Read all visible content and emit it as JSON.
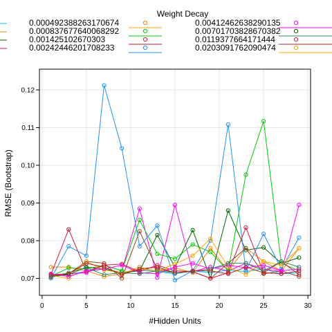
{
  "chart_data": {
    "type": "line",
    "legend_title": "Weight Decay",
    "xlabel": "#Hidden Units",
    "ylabel": "RMSE (Bootstrap)",
    "xlim": [
      -0.3,
      30.3
    ],
    "ylim": [
      0.0655,
      0.1255
    ],
    "xticks": [
      0,
      5,
      10,
      15,
      20,
      25,
      30
    ],
    "yticks": [
      0.07,
      0.08,
      0.09,
      0.1,
      0.11,
      0.12
    ],
    "ytick_labels": [
      "0.07",
      "0.08",
      "0.09",
      "0.10",
      "0.11",
      "0.12"
    ],
    "grid": true,
    "legend_position": "top",
    "x": [
      1,
      3,
      5,
      7,
      9,
      11,
      13,
      15,
      17,
      19,
      21,
      23,
      25,
      27,
      29
    ],
    "series": [
      {
        "name": "",
        "color": "#00bfff",
        "values": [
          0.0705,
          0.0712,
          0.0718,
          0.0725,
          0.0715,
          0.0722,
          0.0718,
          0.0712,
          0.072,
          0.0715,
          0.0722,
          0.0718,
          0.0725,
          0.0712,
          0.0715
        ]
      },
      {
        "name": "0.000492388263170674",
        "color": "#ff7f00",
        "values": [
          0.073,
          0.073,
          0.072,
          0.0705,
          0.0712,
          0.073,
          0.0718,
          0.0728,
          0.0715,
          0.078,
          0.072,
          0.078,
          0.0745,
          0.072,
          0.078
        ]
      },
      {
        "name": "0.00412462638290135",
        "color": "#ff00ff",
        "values": [
          0.071,
          0.0712,
          0.0715,
          0.0735,
          0.072,
          0.0885,
          0.0702,
          0.0895,
          0.0718,
          0.073,
          0.072,
          0.074,
          0.0725,
          0.0718,
          0.0895
        ]
      },
      {
        "name": "0.000837677640068292",
        "color": "#00cc00",
        "values": [
          0.0705,
          0.0728,
          0.0725,
          0.0735,
          0.072,
          0.0855,
          0.0765,
          0.0752,
          0.079,
          0.077,
          0.072,
          0.0975,
          0.1117,
          0.074,
          0.072
        ]
      },
      {
        "name": "0.00701703828670382",
        "color": "#006400",
        "values": [
          0.0705,
          0.071,
          0.073,
          0.0725,
          0.0715,
          0.072,
          0.0815,
          0.073,
          0.0828,
          0.07,
          0.088,
          0.0775,
          0.0782,
          0.074,
          0.0755
        ]
      },
      {
        "name": "0.001425102670303",
        "color": "#8b4513",
        "values": [
          0.0703,
          0.0712,
          0.0745,
          0.074,
          0.07,
          0.0825,
          0.0725,
          0.0715,
          0.0718,
          0.07,
          0.074,
          0.078,
          0.0712,
          0.072,
          0.0705
        ]
      },
      {
        "name": "0.0119377664171444",
        "color": "#dc143c",
        "values": [
          0.071,
          0.083,
          0.0718,
          0.0735,
          0.0738,
          0.0718,
          0.0735,
          0.072,
          0.0718,
          0.07,
          0.0715,
          0.0835,
          0.0715,
          0.0745,
          0.071
        ]
      },
      {
        "name": "0.00242446201708233",
        "color": "#1e90ff",
        "values": [
          0.07,
          0.0785,
          0.076,
          0.1212,
          0.1045,
          0.0785,
          0.084,
          0.0695,
          0.072,
          0.08,
          0.1108,
          0.072,
          0.0818,
          0.0725,
          0.0808
        ]
      },
      {
        "name": "0.0203091762090474",
        "color": "#ffa500",
        "values": [
          0.0708,
          0.07,
          0.0745,
          0.0722,
          0.0715,
          0.0725,
          0.072,
          0.0738,
          0.076,
          0.0805,
          0.073,
          0.071,
          0.0745,
          0.0735,
          0.078
        ]
      },
      {
        "name": "",
        "color": "#ff00ff",
        "values": [
          0.0712,
          0.0705,
          0.072,
          0.0725,
          0.0735,
          0.0715,
          0.0712,
          0.073,
          0.074,
          0.0725,
          0.0735,
          0.0728,
          0.0735,
          0.072,
          0.0725
        ]
      },
      {
        "name": "",
        "color": "#2e8b57",
        "values": [
          0.0705,
          0.0715,
          0.0728,
          0.071,
          0.0715,
          0.0712,
          0.072,
          0.0715,
          0.0718,
          0.0725,
          0.074,
          0.074,
          0.072,
          0.0745,
          0.073
        ]
      },
      {
        "name": "",
        "color": "#b22222",
        "values": [
          0.0708,
          0.0712,
          0.074,
          0.073,
          0.071,
          0.0725,
          0.073,
          0.0715,
          0.072,
          0.072,
          0.0712,
          0.073,
          0.0715,
          0.0712,
          0.072
        ]
      }
    ]
  }
}
